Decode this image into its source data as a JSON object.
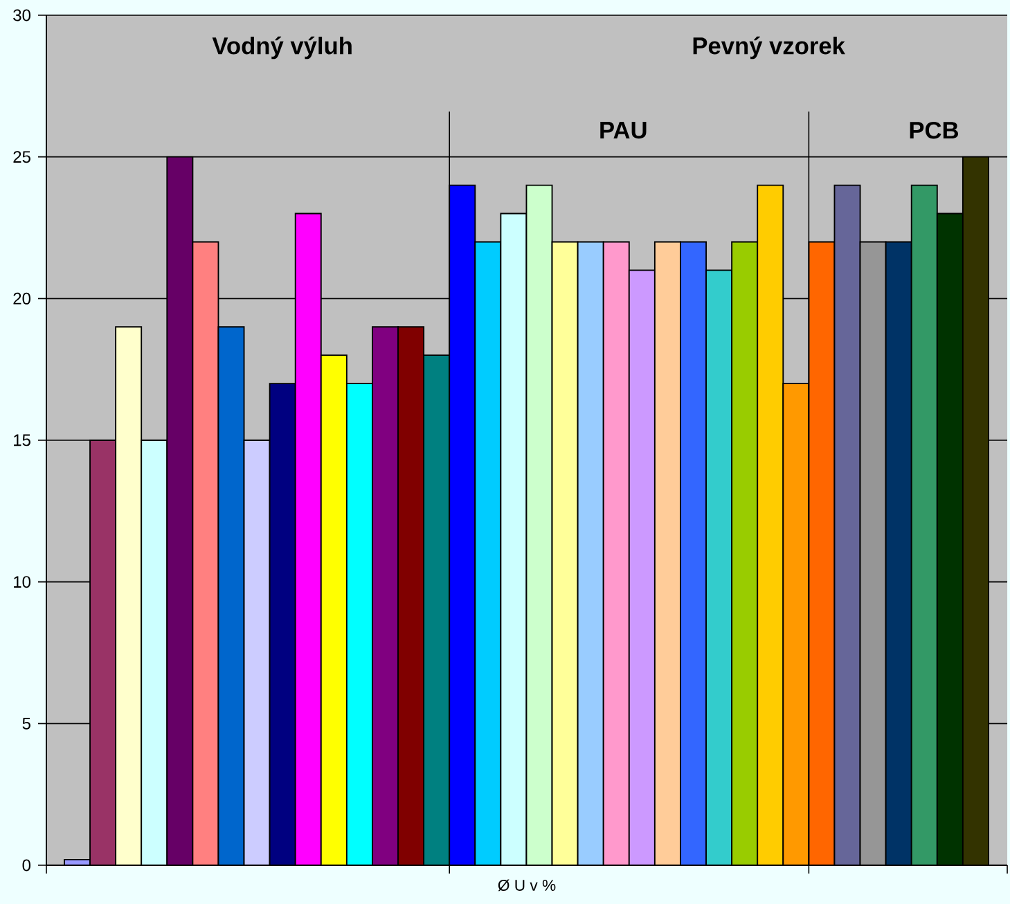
{
  "chart_data": {
    "type": "bar",
    "xlabel": "Ø U v %",
    "annotations": [
      "Vodný výluh",
      "Pevný vzorek",
      "PAU",
      "PCB"
    ],
    "categories": [
      null,
      null,
      null,
      null,
      null,
      null,
      null,
      null,
      null,
      null,
      null,
      null,
      null,
      null,
      null,
      null,
      null,
      null,
      null,
      null,
      null,
      null,
      null,
      null,
      null,
      null,
      null,
      null,
      null,
      null,
      null,
      null,
      null,
      null,
      null,
      null
    ],
    "values": [
      0.2,
      15,
      19,
      15,
      25,
      22,
      19,
      15,
      17,
      23,
      18,
      17,
      19,
      19,
      18,
      24,
      22,
      23,
      24,
      22,
      22,
      22,
      21,
      22,
      22,
      21,
      22,
      24,
      17,
      22,
      24,
      22,
      22,
      24,
      23,
      25
    ],
    "colors": [
      "#9999ff",
      "#993366",
      "#ffffcc",
      "#ccffff",
      "#660066",
      "#ff8080",
      "#0066cc",
      "#ccccff",
      "#000080",
      "#ff00ff",
      "#ffff00",
      "#00ffff",
      "#800080",
      "#800000",
      "#008080",
      "#0000ff",
      "#00ccff",
      "#ccffff",
      "#ccffcc",
      "#ffff99",
      "#99ccff",
      "#ff99cc",
      "#cc99ff",
      "#ffcc99",
      "#3366ff",
      "#33cccc",
      "#99cc00",
      "#ffcc00",
      "#ff9900",
      "#ff6600",
      "#666699",
      "#969696",
      "#003366",
      "#339966",
      "#003300",
      "#333300"
    ],
    "ylim": [
      0,
      30
    ],
    "yticks": [
      0,
      5,
      10,
      15,
      20,
      25,
      30
    ],
    "grid": "y"
  }
}
